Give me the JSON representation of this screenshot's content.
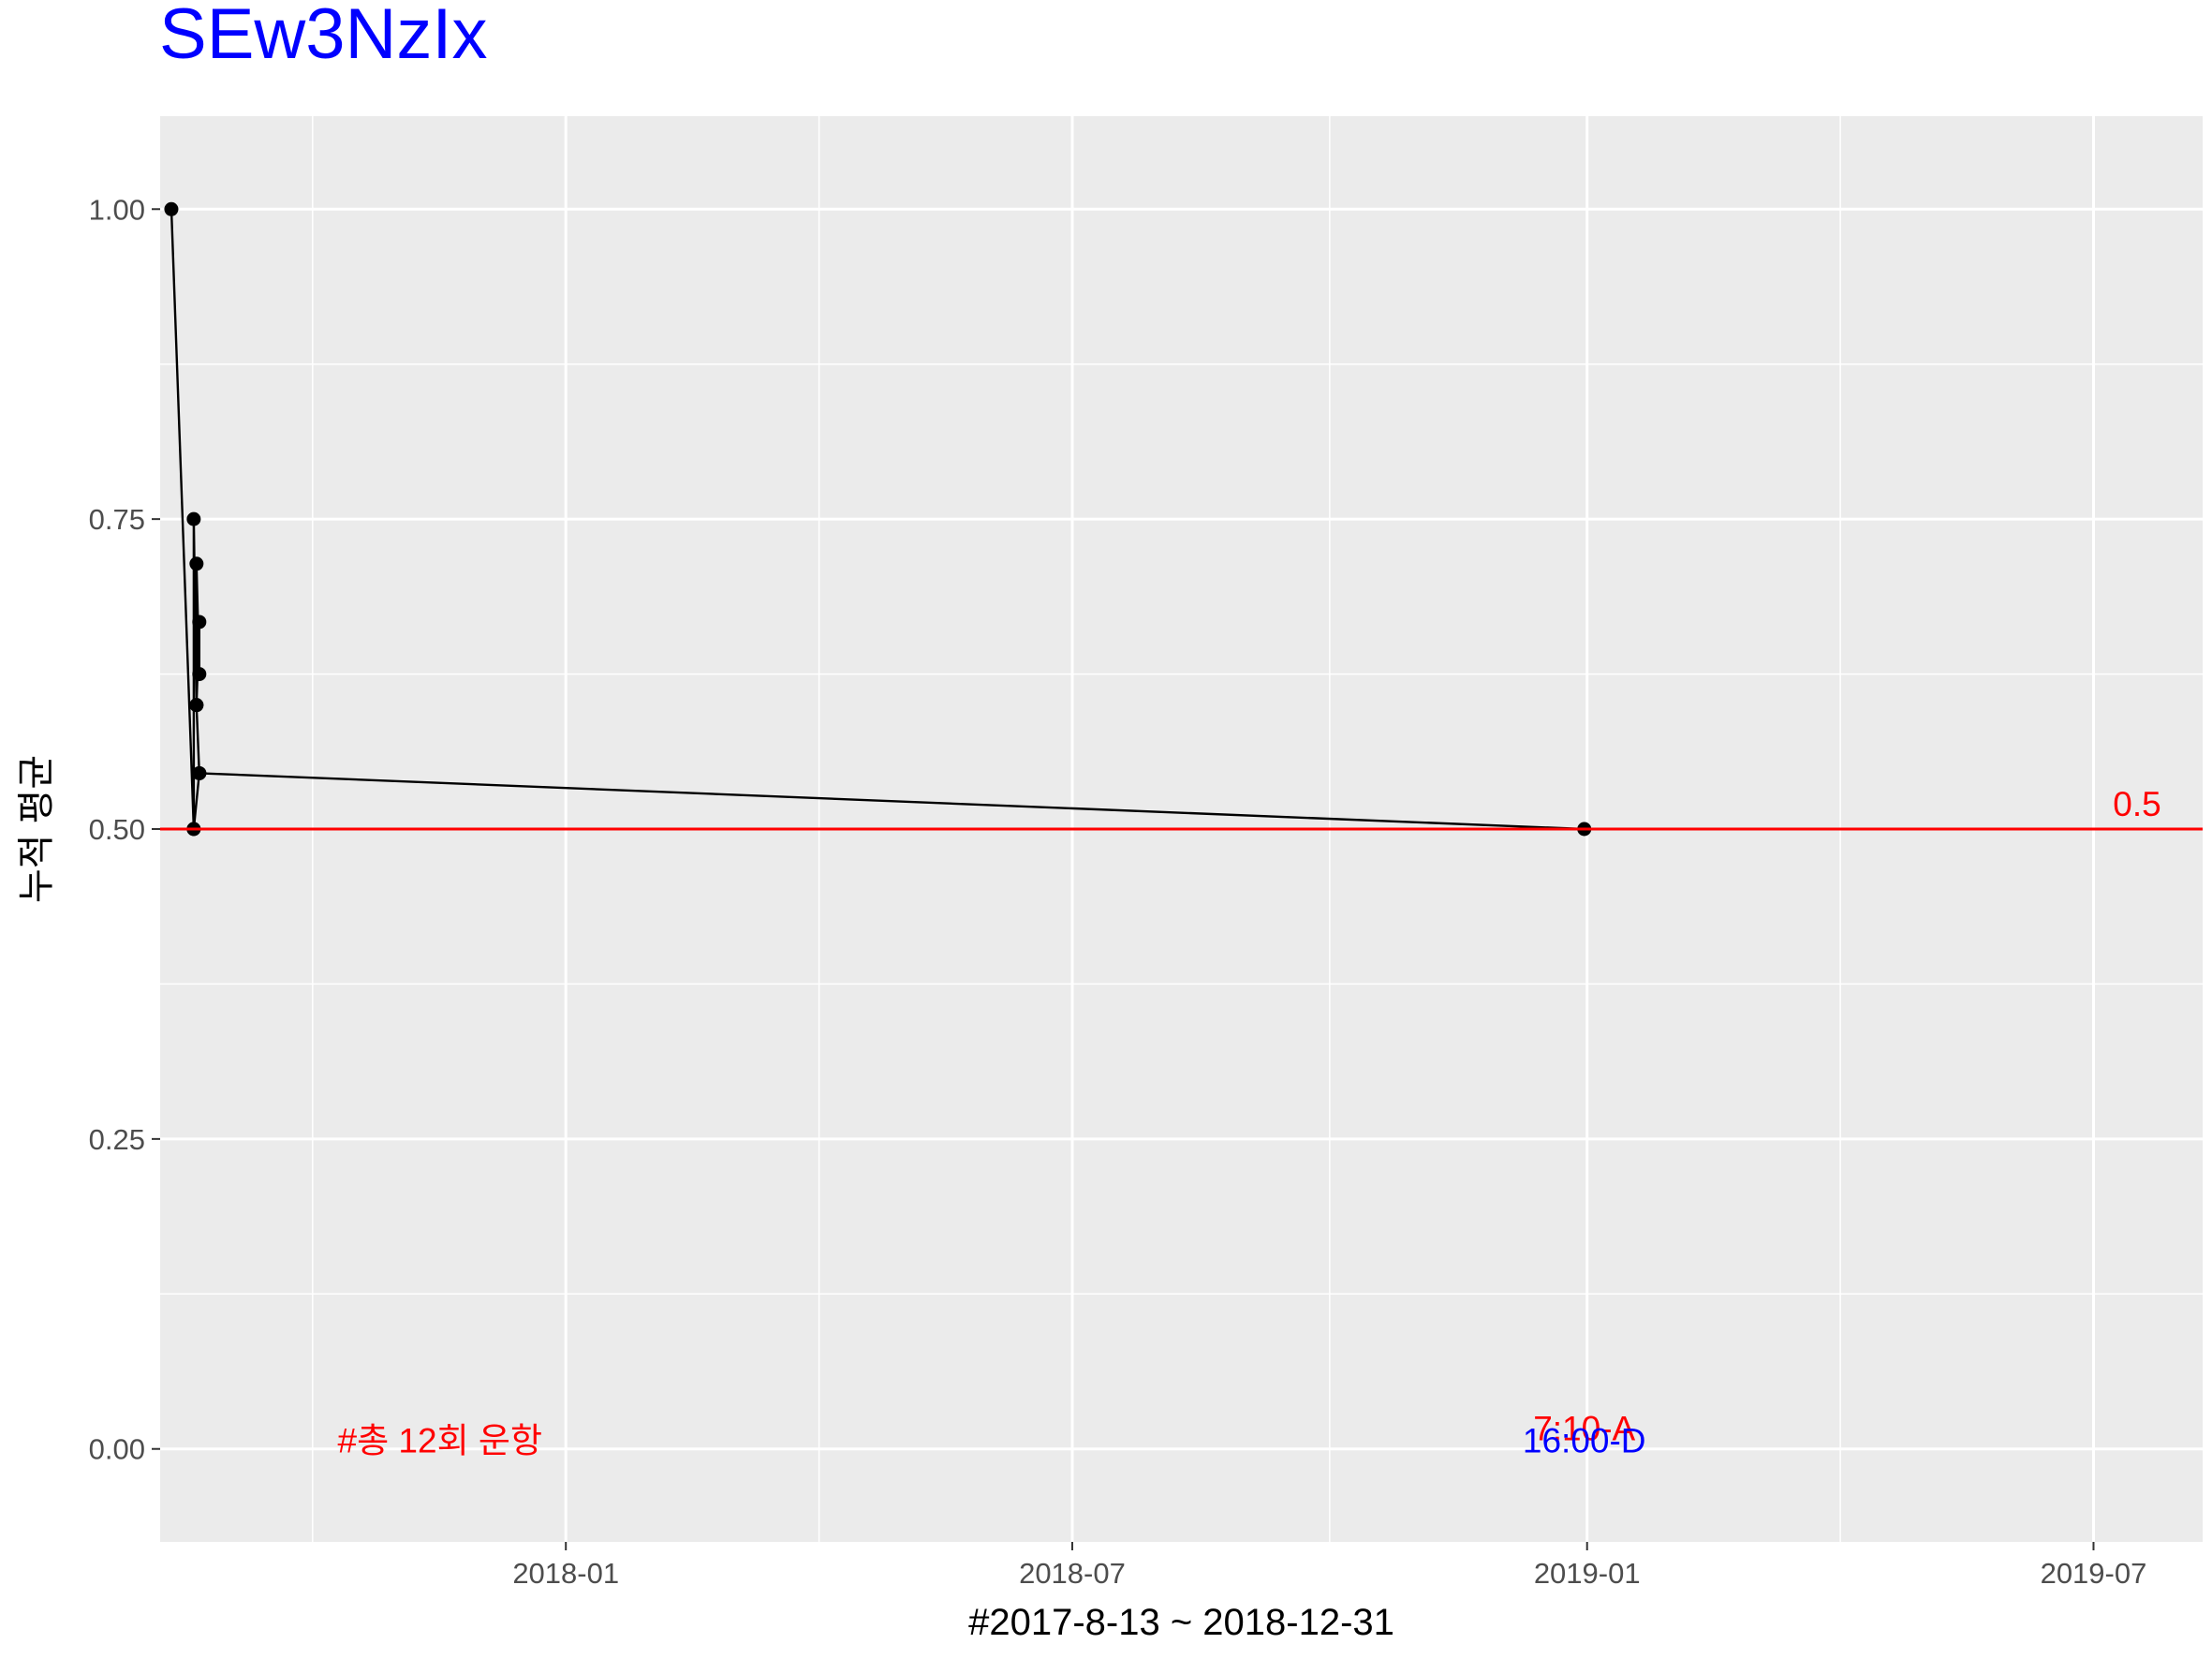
{
  "chart_data": {
    "type": "line",
    "title": "SEw3NzIx",
    "xlabel": "#2017-8-13 ~ 2018-12-31",
    "ylabel": "누적 평균",
    "xlim": [
      "2017-08-09",
      "2019-08-09"
    ],
    "ylim": [
      -0.075,
      1.075
    ],
    "x_ticks": [
      "2018-01-01",
      "2018-07-01",
      "2019-01-01",
      "2019-07-01"
    ],
    "x_tick_labels": [
      "2018-01",
      "2018-07",
      "2019-01",
      "2019-07"
    ],
    "y_ticks": [
      0.0,
      0.25,
      0.5,
      0.75,
      1.0
    ],
    "y_tick_labels": [
      "0.00",
      "0.25",
      "0.50",
      "0.75",
      "1.00"
    ],
    "grid": true,
    "series": [
      {
        "x": [
          "2017-08-13",
          "2017-08-21",
          "2017-08-21",
          "2017-08-22",
          "2017-08-22",
          "2017-08-23",
          "2017-08-23",
          "2017-08-22",
          "2017-08-23",
          "2017-08-21",
          "2017-08-23",
          "2018-12-31"
        ],
        "y": [
          1.0,
          0.5,
          0.75,
          0.6,
          0.714,
          0.625,
          0.667,
          0.6,
          0.545,
          0.5,
          0.545,
          0.5
        ],
        "color": "#000000"
      }
    ],
    "reference_line": {
      "y": 0.5,
      "label": "0.5",
      "color": "#ff0000"
    },
    "annotations": [
      {
        "text": "#총 12회 운항",
        "x": "2017-11-17",
        "y": 0.0,
        "color": "#ff0000"
      },
      {
        "text": "7:10-A",
        "x": "2018-12-31",
        "y": 0.01,
        "color": "#ff0000"
      },
      {
        "text": "16:00-D",
        "x": "2018-12-31",
        "y": 0.0,
        "color": "#0000ff"
      }
    ],
    "colors": {
      "title": "#0000ff",
      "panel": "#ebebeb",
      "grid": "#ffffff",
      "line": "#000000"
    }
  }
}
